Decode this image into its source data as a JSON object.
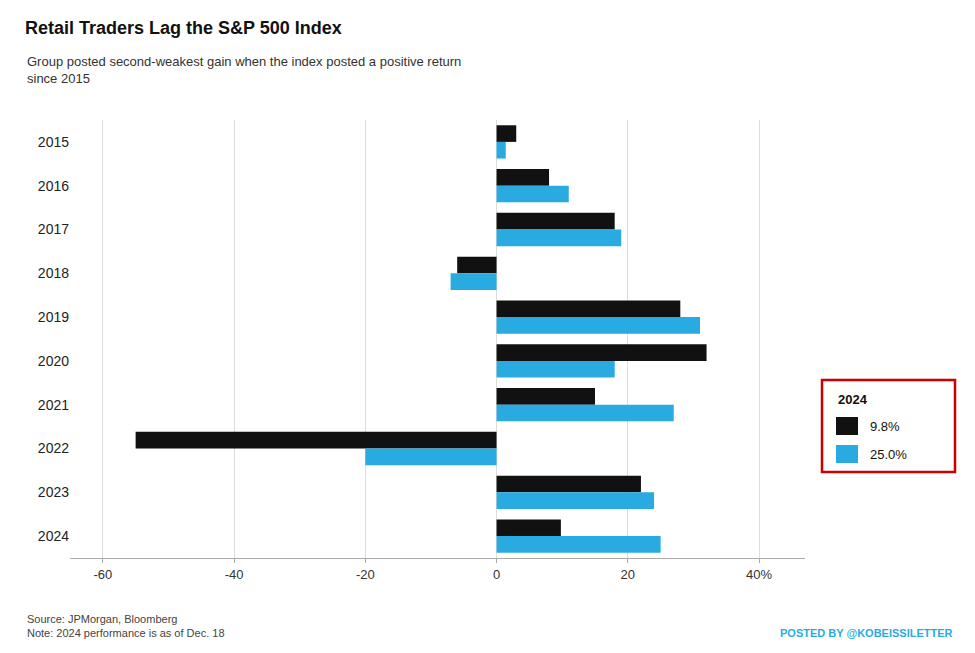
{
  "chart_data": {
    "type": "bar",
    "orientation": "horizontal",
    "title": "Retail Traders Lag the S&P 500 Index",
    "subtitle": "Group posted second-weakest gain when the index posted a positive return\nsince 2015",
    "categories": [
      "2015",
      "2016",
      "2017",
      "2018",
      "2019",
      "2020",
      "2021",
      "2022",
      "2023",
      "2024"
    ],
    "series": [
      {
        "color": "#111111",
        "values": [
          3.0,
          8.0,
          18.0,
          -6.0,
          28.0,
          32.0,
          15.0,
          -55.0,
          22.0,
          9.8
        ]
      },
      {
        "color": "#29abe2",
        "values": [
          1.4,
          11.0,
          19.0,
          -7.0,
          31.0,
          18.0,
          27.0,
          -20.0,
          24.0,
          25.0
        ]
      }
    ],
    "xlim": [
      -65,
      47
    ],
    "xticks": [
      -60,
      -40,
      -20,
      0,
      20,
      {
        "value": 40,
        "label": "40%"
      }
    ],
    "grid": true,
    "annotations": [
      {
        "text": "2024"
      },
      {
        "text": "9.8%",
        "color": "#111111"
      },
      {
        "text": "25.0%",
        "color": "#29abe2"
      },
      {
        "text": "Source: JPMorgan, Bloomberg\nNote: 2024 performance is as of Dec. 18"
      },
      {
        "text": "POSTED BY @KOBEISSILETTER",
        "color": "#29abe2"
      }
    ]
  }
}
